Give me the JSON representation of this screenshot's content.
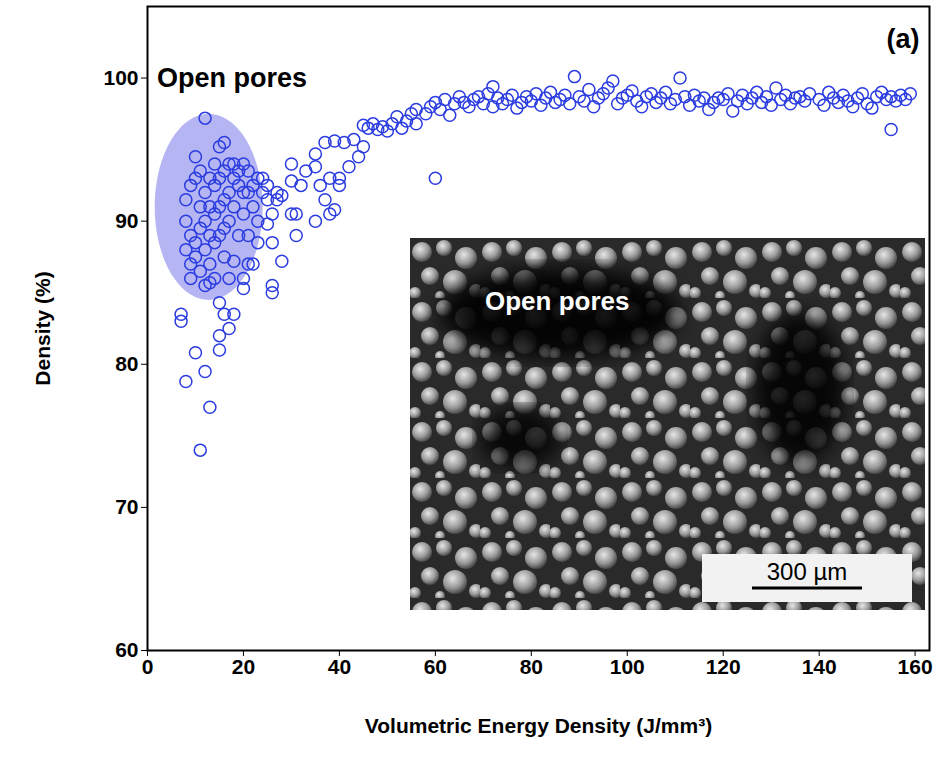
{
  "chart_data": {
    "type": "scatter",
    "x_label": "Volumetric Energy Density (J/mm³)",
    "y_label": "Density (%)",
    "panel_label": "(a)",
    "xlim": [
      0,
      163
    ],
    "ylim": [
      60,
      105
    ],
    "xticks": [
      0,
      20,
      40,
      60,
      80,
      100,
      120,
      140,
      160
    ],
    "yticks": [
      60,
      70,
      80,
      90,
      100
    ],
    "grid": false,
    "color": "#2b3ce0",
    "marker": "open_circle",
    "annotation": {
      "text": "Open pores",
      "x": 2,
      "y": 100
    },
    "region": {
      "x_range": [
        1.5,
        24
      ],
      "y_range": [
        84.5,
        97.5
      ]
    },
    "inset": {
      "label": "Open pores",
      "scale_bar": "300 µm"
    },
    "x": [
      7,
      7,
      8,
      8,
      8,
      8,
      9,
      9,
      9,
      9,
      10,
      10,
      10,
      10,
      10,
      11,
      11,
      11,
      11,
      11,
      12,
      12,
      12,
      12,
      12,
      12,
      13,
      13,
      13,
      13,
      13,
      13,
      14,
      14,
      14,
      14,
      14,
      15,
      15,
      15,
      15,
      15,
      15,
      15,
      16,
      16,
      16,
      16,
      16,
      16,
      17,
      17,
      17,
      17,
      17,
      18,
      18,
      18,
      18,
      18,
      19,
      19,
      19,
      20,
      20,
      20,
      20,
      20,
      21,
      21,
      21,
      21,
      22,
      22,
      22,
      23,
      23,
      23,
      24,
      24,
      25,
      25,
      25,
      26,
      26,
      26,
      26,
      27,
      27,
      28,
      28,
      30,
      30,
      30,
      31,
      31,
      32,
      33,
      35,
      35,
      35,
      36,
      37,
      37,
      38,
      38,
      39,
      39,
      40,
      40,
      41,
      42,
      43,
      44,
      45,
      45,
      46,
      47,
      48,
      49,
      50,
      51,
      52,
      53,
      54,
      55,
      56,
      56,
      58,
      59,
      60,
      60,
      61,
      62,
      63,
      64,
      65,
      66,
      67,
      68,
      69,
      70,
      71,
      72,
      72,
      73,
      74,
      75,
      76,
      77,
      78,
      79,
      80,
      81,
      82,
      83,
      84,
      85,
      86,
      87,
      88,
      89,
      90,
      91,
      92,
      93,
      94,
      95,
      96,
      97,
      98,
      99,
      100,
      101,
      102,
      103,
      104,
      105,
      106,
      107,
      108,
      109,
      110,
      111,
      112,
      113,
      114,
      115,
      116,
      117,
      118,
      119,
      120,
      121,
      122,
      123,
      124,
      125,
      126,
      127,
      128,
      129,
      130,
      131,
      132,
      133,
      134,
      135,
      136,
      137,
      138,
      140,
      141,
      142,
      143,
      144,
      145,
      146,
      147,
      148,
      149,
      150,
      151,
      152,
      153,
      154,
      155,
      155,
      156,
      157,
      158,
      159
    ],
    "values": [
      83.5,
      83,
      78.8,
      88,
      90,
      91.5,
      87,
      86,
      89,
      92.5,
      93,
      94.5,
      88.5,
      80.8,
      87.5,
      91,
      89.5,
      93.5,
      74,
      86.5,
      97.2,
      92,
      90,
      88,
      85.5,
      79.5,
      93,
      91,
      89,
      87,
      85.7,
      77,
      94,
      92.5,
      90.5,
      88.5,
      86,
      95.2,
      93,
      91,
      89,
      84.3,
      82,
      81,
      95.5,
      93.5,
      91.5,
      89.5,
      87.5,
      83.5,
      94,
      92,
      90,
      86,
      82.5,
      94,
      93,
      91,
      87.2,
      83.5,
      93.5,
      92.5,
      89,
      94,
      92,
      90.5,
      86,
      85.3,
      93.5,
      92,
      89,
      87,
      92.5,
      91,
      87,
      93,
      90,
      88.5,
      93,
      92,
      92.5,
      91.5,
      89.8,
      90.5,
      88.5,
      85.5,
      85,
      92,
      91.5,
      87.2,
      91.8,
      92.8,
      94,
      90.5,
      89,
      90.5,
      92.5,
      93.5,
      94.7,
      90,
      93.8,
      92.5,
      91.5,
      95.5,
      93,
      90.5,
      95.6,
      90.8,
      93,
      92.5,
      95.5,
      93.8,
      95.7,
      94.5,
      96.7,
      95.2,
      96.5,
      96.8,
      96.4,
      96.6,
      96.3,
      96.8,
      97.3,
      96.5,
      97,
      97.5,
      96.8,
      97.8,
      97.5,
      98,
      98.3,
      93,
      97.8,
      98.5,
      97.4,
      98.2,
      98.7,
      98.3,
      98,
      98.5,
      98.7,
      98.2,
      98.9,
      99.4,
      98,
      98.6,
      98.2,
      98.5,
      98.8,
      97.9,
      98.3,
      98.7,
      98.4,
      98.9,
      98.1,
      98.6,
      99,
      98.3,
      98.5,
      98.8,
      98.2,
      100.1,
      98.7,
      98.4,
      99.2,
      98,
      98.6,
      98.9,
      99.3,
      99.8,
      98.2,
      98.6,
      98.8,
      99.1,
      98.4,
      98,
      98.7,
      98.9,
      98.3,
      98.6,
      99,
      98.2,
      98.5,
      100,
      98.7,
      98.1,
      98.8,
      98.4,
      98.6,
      97.8,
      98.3,
      98.6,
      98.5,
      98.9,
      97.7,
      98.4,
      98.8,
      98.2,
      98.6,
      99,
      98.3,
      98.7,
      98.1,
      99.3,
      98.5,
      98.8,
      98.2,
      98.6,
      98.7,
      98.4,
      98.9,
      98.5,
      98.1,
      99,
      98.6,
      98.3,
      98.8,
      98.4,
      98,
      98.6,
      98.9,
      98.2,
      97.9,
      98.7,
      99,
      98.5,
      96.4,
      98.7,
      98.4,
      98.8,
      98.5,
      98.9
    ]
  }
}
